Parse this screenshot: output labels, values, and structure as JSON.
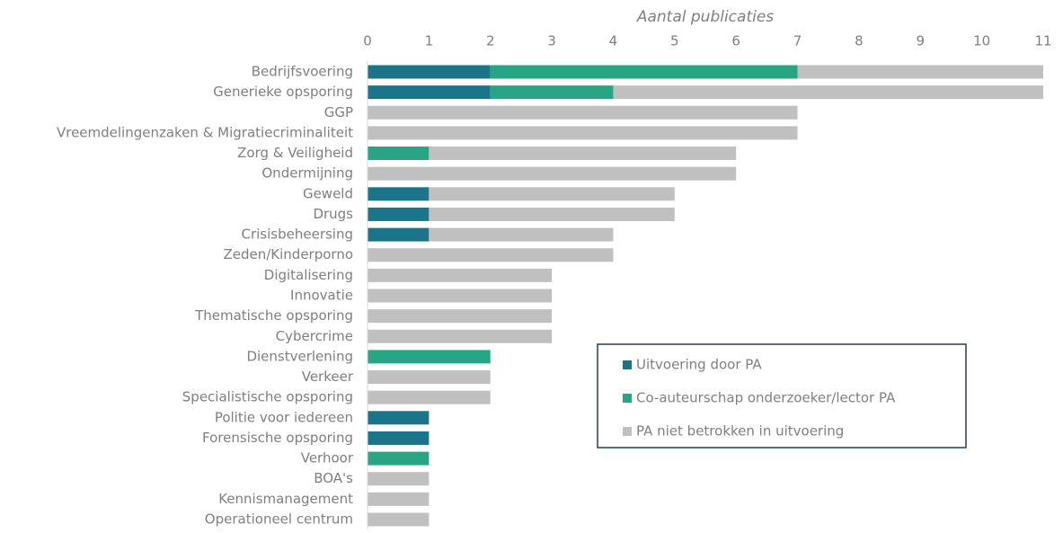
{
  "chart_data": {
    "type": "stacked-bar-horizontal",
    "x_label": "Aantal publicaties",
    "categories": [
      "Bedrijfsvoering",
      "Generieke opsporing",
      "GGP",
      "Vreemdelingenzaken & Migratiecriminaliteit",
      "Zorg & Veiligheid",
      "Ondermijning",
      "Geweld",
      "Drugs",
      "Crisisbeheersing",
      "Zeden/Kinderporno",
      "Digitalisering",
      "Innovatie",
      "Thematische opsporing",
      "Cybercrime",
      "Dienstverlening",
      "Verkeer",
      "Specialistische opsporing",
      "Politie voor iedereen",
      "Forensische opsporing",
      "Verhoor",
      "BOA's",
      "Kennismanagement",
      "Operationeel centrum"
    ],
    "series": [
      {
        "name": "Uitvoering door PA",
        "color": "#1b7489",
        "values": [
          2,
          2,
          0,
          0,
          0,
          0,
          1,
          1,
          1,
          0,
          0,
          0,
          0,
          0,
          0,
          0,
          0,
          1,
          1,
          0,
          0,
          0,
          0
        ]
      },
      {
        "name": "Co-auteurschap onderzoeker/lector PA",
        "color": "#27a585",
        "values": [
          5,
          2,
          0,
          0,
          1,
          0,
          0,
          0,
          0,
          0,
          0,
          0,
          0,
          0,
          2,
          0,
          0,
          0,
          0,
          1,
          0,
          0,
          0
        ]
      },
      {
        "name": "PA niet betrokken in uitvoering",
        "color": "#c0c0c0",
        "values": [
          4,
          7,
          7,
          7,
          5,
          6,
          4,
          4,
          3,
          4,
          3,
          3,
          3,
          3,
          0,
          2,
          2,
          0,
          0,
          0,
          1,
          1,
          1
        ]
      }
    ],
    "xlim": [
      0,
      11
    ],
    "xticks": [
      0,
      1,
      2,
      3,
      4,
      5,
      6,
      7,
      8,
      9,
      10,
      11
    ],
    "legend": "inside-lower-right"
  }
}
